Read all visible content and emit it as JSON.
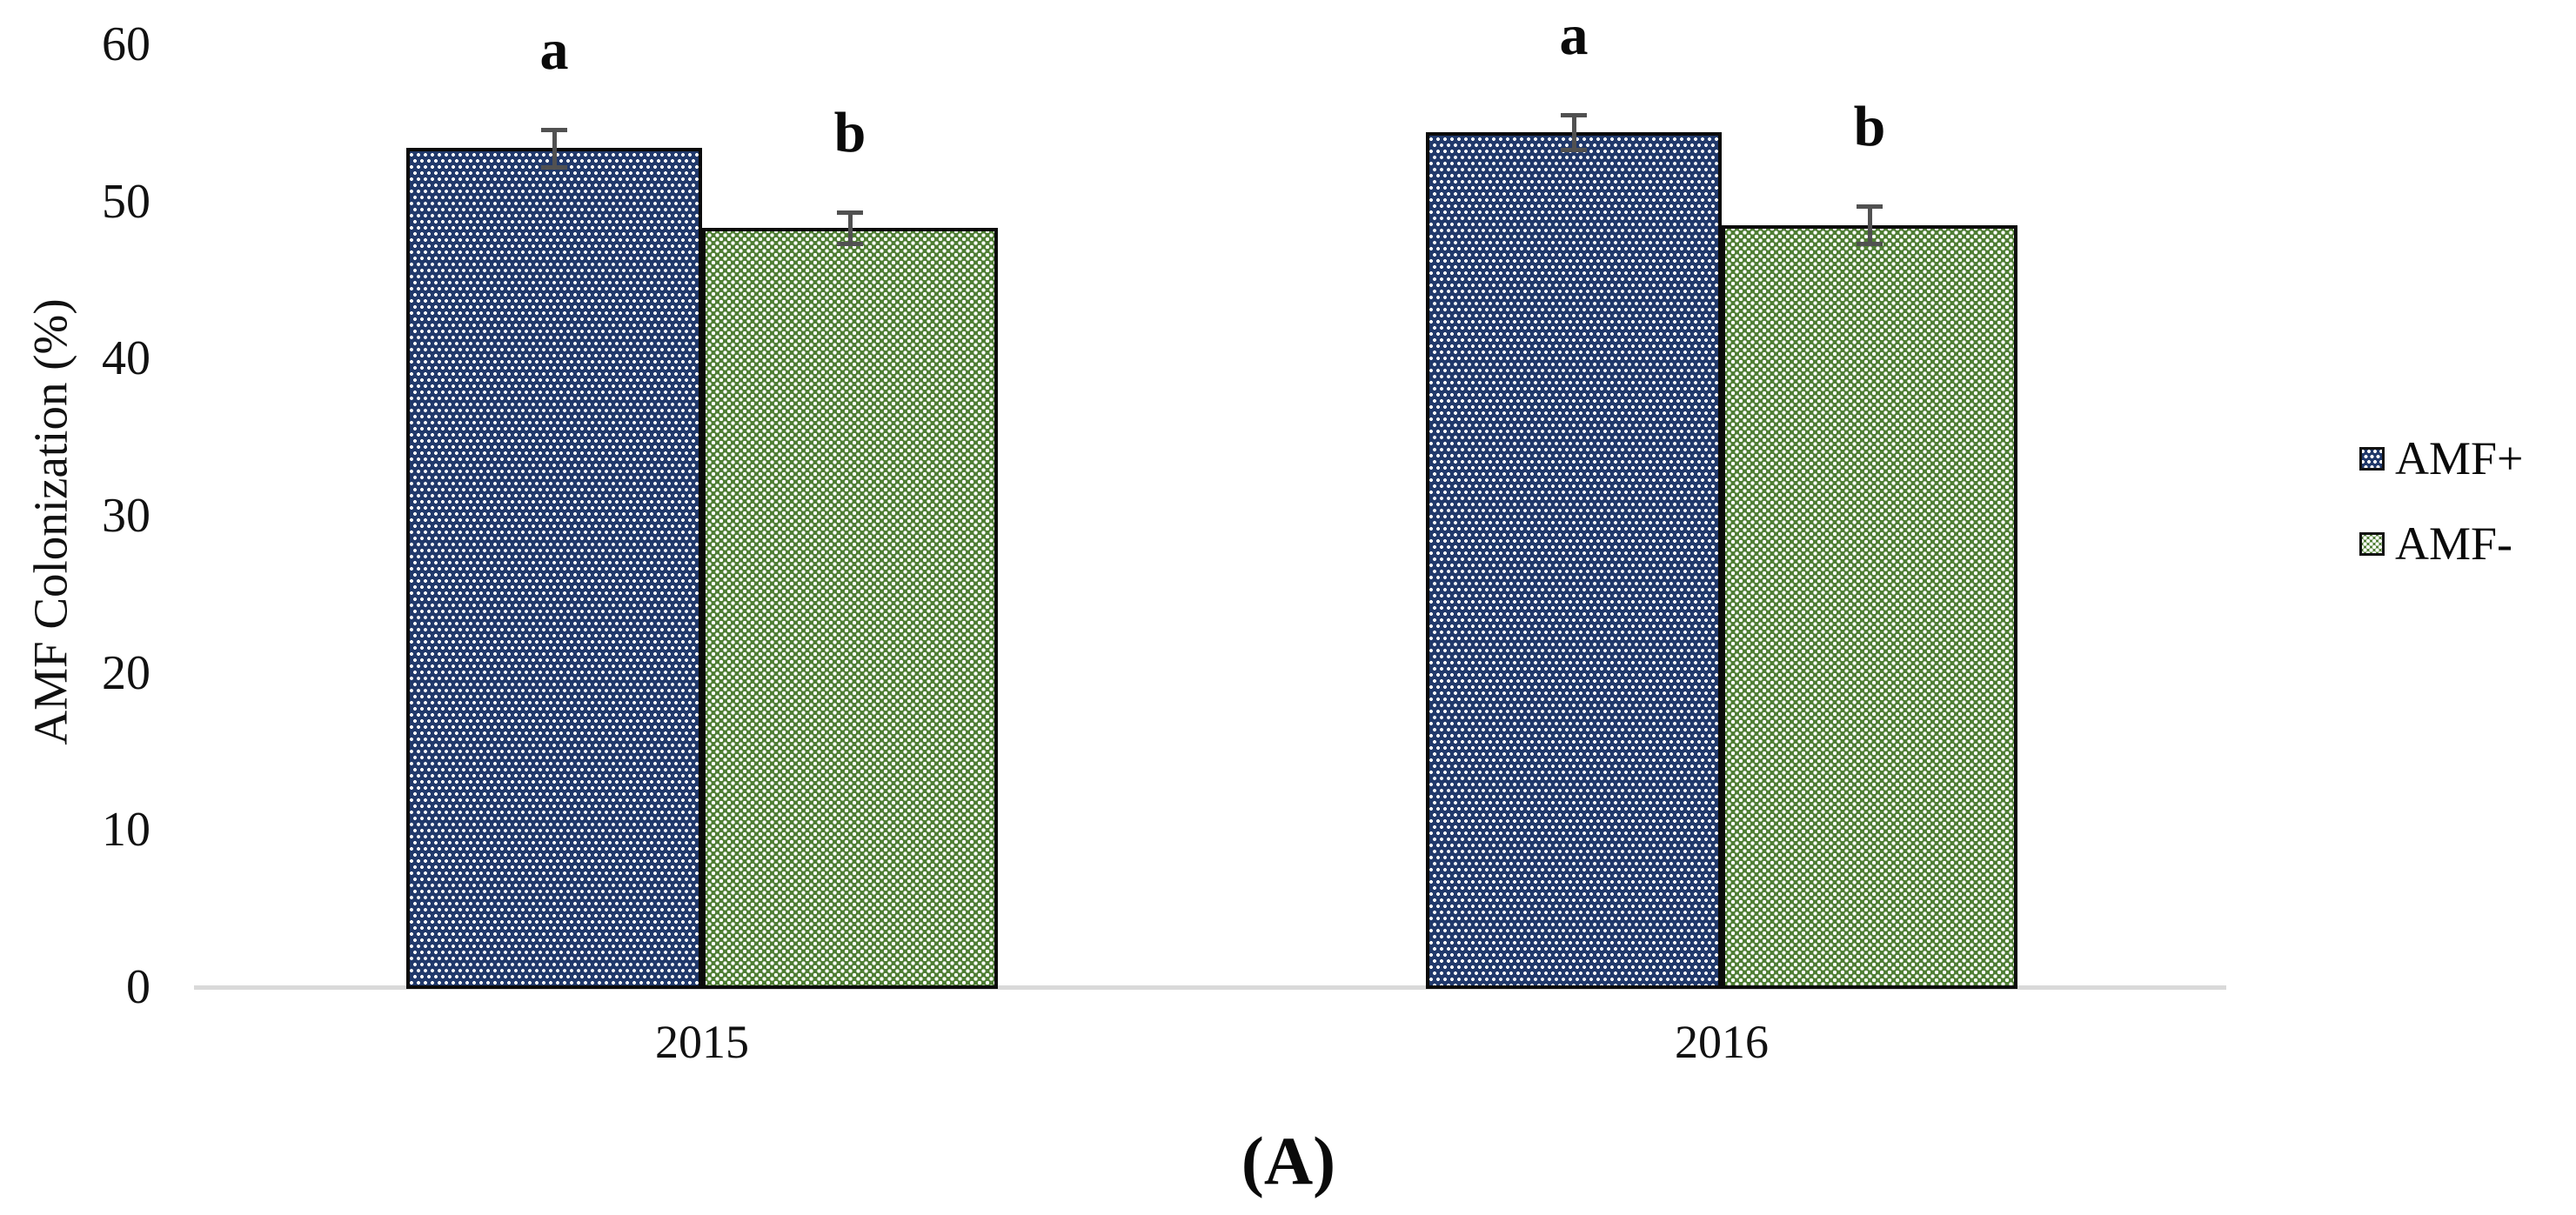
{
  "chart_data": {
    "type": "bar",
    "title": "",
    "xlabel": "",
    "ylabel": "AMF Colonization (%)",
    "ylim": [
      0,
      60
    ],
    "yticks": [
      0,
      10,
      20,
      30,
      40,
      50,
      60
    ],
    "categories": [
      "2015",
      "2016"
    ],
    "series": [
      {
        "name": "AMF+",
        "values": [
          53.4,
          54.4
        ],
        "errors": [
          1.2,
          1.1
        ],
        "sig_letters": [
          "a",
          "a"
        ],
        "fill_color": "#21396B",
        "pattern": "white-square-dots"
      },
      {
        "name": "AMF-",
        "values": [
          48.3,
          48.5
        ],
        "errors": [
          1.0,
          1.2
        ],
        "sig_letters": [
          "b",
          "b"
        ],
        "fill_color": "#4E7D33",
        "pattern": "white-diagonal-dot-lattice"
      }
    ],
    "grid": false,
    "legend_position": "right",
    "error_bar_color": "#515151",
    "axis_line_color": "#D9D9D9"
  },
  "legend": {
    "items": [
      {
        "label": "AMF+"
      },
      {
        "label": "AMF-"
      }
    ]
  },
  "caption": "(A)"
}
